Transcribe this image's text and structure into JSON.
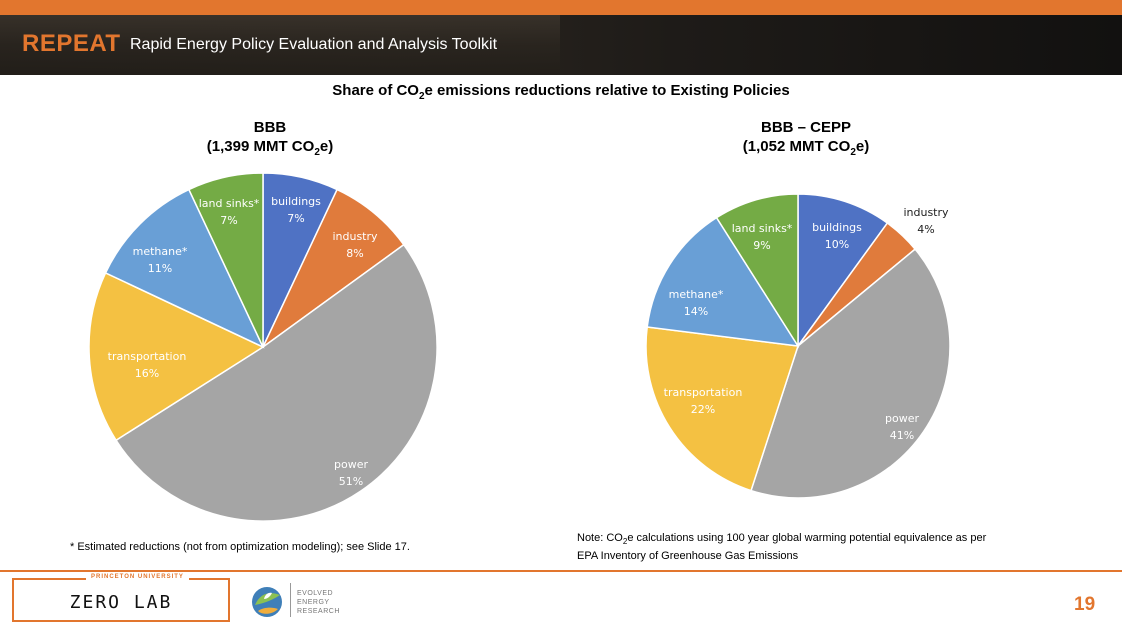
{
  "header": {
    "brand": "REPEAT",
    "subtitle": "Rapid Energy Policy Evaluation and Analysis Toolkit"
  },
  "main_title": {
    "before": "Share of CO",
    "sub": "2",
    "after": "e emissions reductions relative to Existing Policies"
  },
  "chart_data": [
    {
      "type": "pie",
      "title_line1": "BBB",
      "title_line2_before": "(1,399 MMT CO",
      "title_line2_sub": "2",
      "title_line2_after": "e)",
      "slices": [
        {
          "label": "buildings",
          "value": 7,
          "display": "7%",
          "color": "#4f72c4"
        },
        {
          "label": "industry",
          "value": 8,
          "display": "8%",
          "color": "#e07b3c"
        },
        {
          "label": "power",
          "value": 51,
          "display": "51%",
          "color": "#a5a5a5"
        },
        {
          "label": "transportation",
          "value": 16,
          "display": "16%",
          "color": "#f4c142"
        },
        {
          "label": "methane*",
          "value": 11,
          "display": "11%",
          "color": "#699fd6"
        },
        {
          "label": "land sinks*",
          "value": 7,
          "display": "7%",
          "color": "#74ab45"
        }
      ]
    },
    {
      "type": "pie",
      "title_line1": "BBB – CEPP",
      "title_line2_before": "(1,052 MMT CO",
      "title_line2_sub": "2",
      "title_line2_after": "e)",
      "slices": [
        {
          "label": "buildings",
          "value": 10,
          "display": "10%",
          "color": "#4f72c4"
        },
        {
          "label": "industry",
          "value": 4,
          "display": "4%",
          "color": "#e07b3c"
        },
        {
          "label": "power",
          "value": 41,
          "display": "41%",
          "color": "#a5a5a5"
        },
        {
          "label": "transportation",
          "value": 22,
          "display": "22%",
          "color": "#f4c142"
        },
        {
          "label": "methane*",
          "value": 14,
          "display": "14%",
          "color": "#699fd6"
        },
        {
          "label": "land sinks*",
          "value": 9,
          "display": "9%",
          "color": "#74ab45"
        }
      ]
    }
  ],
  "notes": {
    "footnote": "* Estimated reductions (not from optimization modeling); see Slide 17.",
    "co2_note_before": "Note: CO",
    "co2_note_sub": "2",
    "co2_note_after": "e calculations using 100 year global warming potential equivalence as per",
    "co2_note_line2": "EPA Inventory of Greenhouse Gas Emissions"
  },
  "footer": {
    "zerolab_top": "PRINCETON UNIVERSITY",
    "zerolab_main": "ZERO LAB",
    "eer_line1": "EVOLVED",
    "eer_line2": "ENERGY",
    "eer_line3": "RESEARCH",
    "page_number": "19"
  },
  "colors": {
    "accent": "#e2762e"
  }
}
